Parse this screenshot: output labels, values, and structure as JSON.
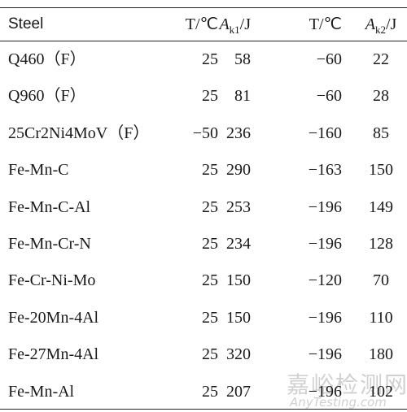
{
  "table": {
    "header": [
      "Steel",
      "T/℃",
      {
        "main": "A",
        "sub": "k1",
        "unit": "/J"
      },
      "T/℃",
      {
        "main": "A",
        "sub": "k2",
        "unit": "/J"
      }
    ],
    "rows": [
      [
        "Q460（F）",
        "25",
        "58",
        "−60",
        "22"
      ],
      [
        "Q960（F）",
        "25",
        "81",
        "−60",
        "28"
      ],
      [
        "25Cr2Ni4MoV（F）",
        "−50",
        "236",
        "−160",
        "85"
      ],
      [
        "Fe-Mn-C",
        "25",
        "290",
        "−163",
        "150"
      ],
      [
        "Fe-Mn-C-Al",
        "25",
        "253",
        "−196",
        "149"
      ],
      [
        "Fe-Mn-Cr-N",
        "25",
        "234",
        "−196",
        "128"
      ],
      [
        "Fe-Cr-Ni-Mo",
        "25",
        "150",
        "−120",
        "70"
      ],
      [
        "Fe-20Mn-4Al",
        "25",
        "150",
        "−196",
        "110"
      ],
      [
        "Fe-27Mn-4Al",
        "25",
        "320",
        "−196",
        "180"
      ],
      [
        "Fe-Mn-Al",
        "25",
        "207",
        "−196",
        "102"
      ]
    ]
  },
  "watermark": {
    "text": "嘉峪检测网",
    "url": "AnyTesting.com"
  }
}
